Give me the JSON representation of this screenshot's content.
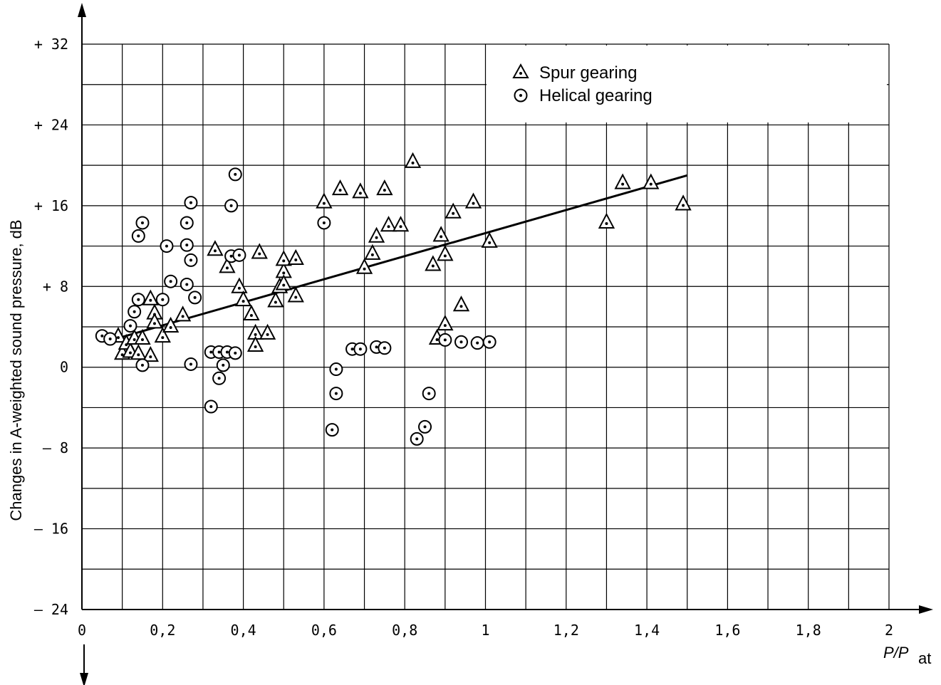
{
  "chart_data": {
    "type": "scatter",
    "title": "",
    "xlabel_main": "P/P",
    "xlabel_sub": "at",
    "ylabel": "Changes in A-weighted sound pressure, dB",
    "xlim": [
      0,
      2
    ],
    "ylim": [
      -24,
      32
    ],
    "grid": true,
    "legend_position": "top-right",
    "x_ticks": [
      "0",
      "0,2",
      "0,4",
      "0,6",
      "0,8",
      "1",
      "1,2",
      "1,4",
      "1,6",
      "1,8",
      "2"
    ],
    "y_ticks": [
      "+ 32",
      "+ 24",
      "+ 16",
      "+ 8",
      "0",
      "– 8",
      "– 16",
      "– 24"
    ],
    "series": [
      {
        "name": "Spur gearing",
        "marker": "triangle",
        "points": [
          [
            0.09,
            3
          ],
          [
            0.1,
            1.3
          ],
          [
            0.11,
            2.3
          ],
          [
            0.12,
            1.5
          ],
          [
            0.13,
            2.8
          ],
          [
            0.14,
            1.3
          ],
          [
            0.15,
            2.8
          ],
          [
            0.17,
            1.1
          ],
          [
            0.17,
            6.7
          ],
          [
            0.18,
            5.3
          ],
          [
            0.18,
            4.4
          ],
          [
            0.2,
            3
          ],
          [
            0.22,
            4
          ],
          [
            0.25,
            5.1
          ],
          [
            0.33,
            11.6
          ],
          [
            0.36,
            9.9
          ],
          [
            0.39,
            7.9
          ],
          [
            0.4,
            6.6
          ],
          [
            0.42,
            5.2
          ],
          [
            0.43,
            3.3
          ],
          [
            0.43,
            2.1
          ],
          [
            0.44,
            11.3
          ],
          [
            0.46,
            3.3
          ],
          [
            0.48,
            6.5
          ],
          [
            0.49,
            7.9
          ],
          [
            0.5,
            9.4
          ],
          [
            0.5,
            10.6
          ],
          [
            0.5,
            8.2
          ],
          [
            0.53,
            10.7
          ],
          [
            0.53,
            7
          ],
          [
            0.6,
            16.3
          ],
          [
            0.64,
            17.6
          ],
          [
            0.69,
            17.3
          ],
          [
            0.7,
            9.8
          ],
          [
            0.72,
            11.2
          ],
          [
            0.73,
            12.9
          ],
          [
            0.75,
            17.6
          ],
          [
            0.76,
            14
          ],
          [
            0.79,
            14
          ],
          [
            0.82,
            20.3
          ],
          [
            0.87,
            10.1
          ],
          [
            0.88,
            2.8
          ],
          [
            0.89,
            13
          ],
          [
            0.9,
            11.1
          ],
          [
            0.9,
            4.2
          ],
          [
            0.92,
            15.3
          ],
          [
            0.94,
            6.1
          ],
          [
            0.97,
            16.3
          ],
          [
            1.01,
            12.4
          ],
          [
            1.3,
            14.3
          ],
          [
            1.34,
            18.2
          ],
          [
            1.41,
            18.2
          ],
          [
            1.49,
            16.1
          ]
        ]
      },
      {
        "name": "Helical gearing",
        "marker": "circle",
        "points": [
          [
            0.05,
            3.1
          ],
          [
            0.07,
            2.8
          ],
          [
            0.12,
            4.1
          ],
          [
            0.13,
            5.5
          ],
          [
            0.14,
            6.7
          ],
          [
            0.14,
            13
          ],
          [
            0.15,
            14.3
          ],
          [
            0.15,
            0.2
          ],
          [
            0.2,
            6.7
          ],
          [
            0.21,
            12
          ],
          [
            0.22,
            8.5
          ],
          [
            0.26,
            14.3
          ],
          [
            0.26,
            12.1
          ],
          [
            0.26,
            8.2
          ],
          [
            0.27,
            16.3
          ],
          [
            0.27,
            10.6
          ],
          [
            0.27,
            0.3
          ],
          [
            0.28,
            6.9
          ],
          [
            0.32,
            -3.9
          ],
          [
            0.32,
            1.5
          ],
          [
            0.34,
            -1.1
          ],
          [
            0.34,
            1.5
          ],
          [
            0.35,
            0.2
          ],
          [
            0.36,
            1.5
          ],
          [
            0.37,
            16
          ],
          [
            0.37,
            11
          ],
          [
            0.38,
            19.1
          ],
          [
            0.38,
            1.4
          ],
          [
            0.39,
            11.1
          ],
          [
            0.6,
            14.3
          ],
          [
            0.62,
            -6.2
          ],
          [
            0.63,
            -0.2
          ],
          [
            0.63,
            -2.6
          ],
          [
            0.67,
            1.8
          ],
          [
            0.69,
            1.8
          ],
          [
            0.73,
            2
          ],
          [
            0.75,
            1.9
          ],
          [
            0.83,
            -7.1
          ],
          [
            0.85,
            -5.9
          ],
          [
            0.86,
            -2.6
          ],
          [
            0.9,
            2.7
          ],
          [
            0.94,
            2.5
          ],
          [
            0.98,
            2.4
          ],
          [
            1.01,
            2.5
          ]
        ]
      }
    ],
    "trend_line": {
      "x": [
        0.1,
        1.5
      ],
      "y": [
        3,
        19
      ]
    }
  }
}
